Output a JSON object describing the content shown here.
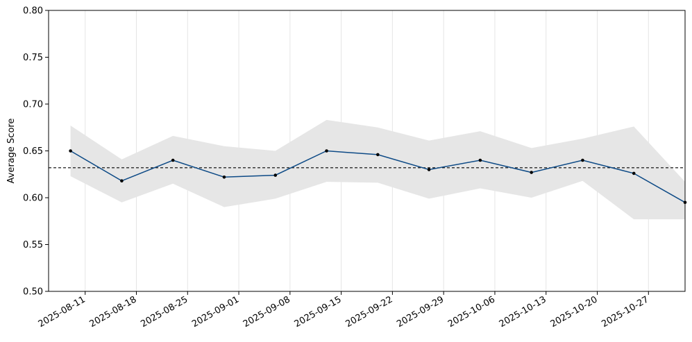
{
  "chart_data": {
    "type": "line",
    "title": "",
    "xlabel": "",
    "ylabel": "Average Score",
    "ylim": [
      0.5,
      0.8
    ],
    "yticks": [
      "0.50",
      "0.55",
      "0.60",
      "0.65",
      "0.70",
      "0.75",
      "0.80"
    ],
    "xlim": [
      "2025-08-06",
      "2025-11-01"
    ],
    "xticks": [
      "2025-08-11",
      "2025-08-18",
      "2025-08-25",
      "2025-09-01",
      "2025-09-08",
      "2025-09-15",
      "2025-09-22",
      "2025-09-29",
      "2025-10-06",
      "2025-10-13",
      "2025-10-20",
      "2025-10-27"
    ],
    "grid": "vertical",
    "legend": "none",
    "series": [
      {
        "x": [
          "2025-08-09",
          "2025-08-16",
          "2025-08-23",
          "2025-08-30",
          "2025-09-06",
          "2025-09-13",
          "2025-09-20",
          "2025-09-27",
          "2025-10-04",
          "2025-10-11",
          "2025-10-18",
          "2025-10-25",
          "2025-11-01"
        ],
        "values": [
          0.65,
          0.618,
          0.64,
          0.622,
          0.624,
          0.65,
          0.646,
          0.63,
          0.64,
          0.627,
          0.64,
          0.626,
          0.595
        ],
        "ci_lower": [
          0.623,
          0.595,
          0.615,
          0.59,
          0.599,
          0.617,
          0.616,
          0.599,
          0.61,
          0.6,
          0.618,
          0.577,
          0.577
        ],
        "ci_upper": [
          0.677,
          0.641,
          0.666,
          0.655,
          0.65,
          0.683,
          0.675,
          0.661,
          0.671,
          0.653,
          0.663,
          0.676,
          0.617
        ],
        "color": "#0d4a86",
        "band_color": "#e6e6e6"
      }
    ],
    "reference_line": {
      "value": 0.632,
      "style": "dashed",
      "color": "#000000"
    }
  }
}
